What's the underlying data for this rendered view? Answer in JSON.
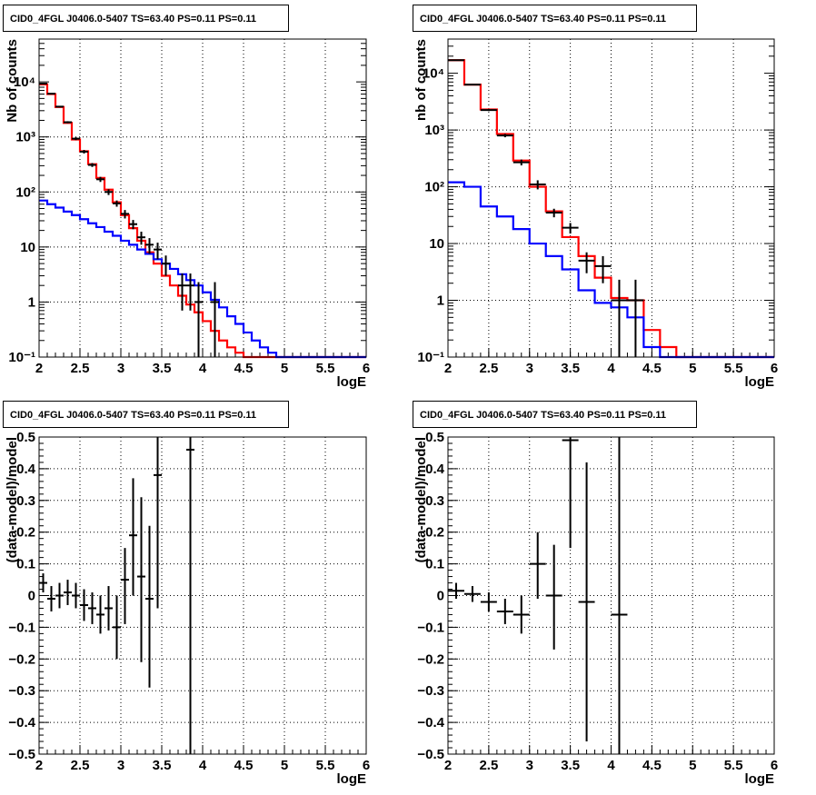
{
  "chart_data": [
    {
      "type": "line",
      "title": "CID0_4FGL J0406.0-5407 TS=63.40 PS=0.11 PS=0.11",
      "xlabel": "logE",
      "ylabel": "Nb of counts",
      "yscale": "log",
      "xlim": [
        2,
        6
      ],
      "ylim": [
        0.1,
        60000
      ],
      "x_ticks": [
        "2",
        "2.5",
        "3",
        "3.5",
        "4",
        "4.5",
        "5",
        "5.5",
        "6"
      ],
      "y_ticks": [
        {
          "value": 0.1,
          "label": "10⁻¹"
        },
        {
          "value": 1,
          "label": "1"
        },
        {
          "value": 10,
          "label": "10"
        },
        {
          "value": 100,
          "label": "10²"
        },
        {
          "value": 1000,
          "label": "10³"
        },
        {
          "value": 10000,
          "label": "10⁴"
        }
      ],
      "grid": true,
      "bin_edges": [
        2.0,
        2.1,
        2.2,
        2.3,
        2.4,
        2.5,
        2.6,
        2.7,
        2.8,
        2.9,
        3.0,
        3.1,
        3.2,
        3.3,
        3.4,
        3.5,
        3.6,
        3.7,
        3.8,
        3.9,
        4.0,
        4.1,
        4.2,
        4.3,
        4.4,
        4.5,
        4.6,
        4.7,
        4.8,
        4.9,
        5.0,
        5.1,
        5.2,
        5.3,
        5.4,
        5.5,
        5.6,
        5.7,
        5.8,
        5.9,
        6.0
      ],
      "series": [
        {
          "color": "#ff0000",
          "style": "histogram",
          "values": [
            9000,
            6000,
            3500,
            1800,
            900,
            550,
            320,
            180,
            110,
            65,
            38,
            22,
            13,
            8,
            5,
            3,
            2,
            1.3,
            0.9,
            0.65,
            0.45,
            0.3,
            0.2,
            0.15,
            0.12,
            0.1,
            0.1,
            0.1,
            0.1,
            0.1,
            0.1,
            0.1,
            0.1,
            0.1,
            0.1,
            0.1,
            0.1,
            0.1,
            0.1,
            0.1
          ]
        },
        {
          "color": "#0000ff",
          "style": "histogram",
          "values": [
            70,
            60,
            52,
            44,
            38,
            32,
            27,
            23,
            19,
            16,
            13,
            11,
            9,
            7.5,
            6,
            5,
            4,
            3.2,
            2.5,
            2,
            1.5,
            1.1,
            0.8,
            0.55,
            0.4,
            0.28,
            0.2,
            0.15,
            0.12,
            0.1,
            0.1,
            0.1,
            0.1,
            0.1,
            0.1,
            0.1,
            0.1,
            0.1,
            0.1,
            0.1
          ]
        },
        {
          "color": "#000000",
          "style": "points",
          "points": [
            {
              "x": 2.05,
              "y": 9300,
              "lo": 9100,
              "hi": 9500
            },
            {
              "x": 2.15,
              "y": 6100,
              "lo": 5950,
              "hi": 6250
            },
            {
              "x": 2.25,
              "y": 3550,
              "lo": 3440,
              "hi": 3660
            },
            {
              "x": 2.35,
              "y": 1850,
              "lo": 1770,
              "hi": 1930
            },
            {
              "x": 2.45,
              "y": 930,
              "lo": 875,
              "hi": 985
            },
            {
              "x": 2.55,
              "y": 540,
              "lo": 500,
              "hi": 580
            },
            {
              "x": 2.65,
              "y": 310,
              "lo": 285,
              "hi": 335
            },
            {
              "x": 2.75,
              "y": 170,
              "lo": 152,
              "hi": 188
            },
            {
              "x": 2.85,
              "y": 100,
              "lo": 88,
              "hi": 112
            },
            {
              "x": 2.95,
              "y": 62,
              "lo": 54,
              "hi": 70
            },
            {
              "x": 3.05,
              "y": 40,
              "lo": 33,
              "hi": 47
            },
            {
              "x": 3.15,
              "y": 26,
              "lo": 21,
              "hi": 31
            },
            {
              "x": 3.25,
              "y": 15,
              "lo": 11,
              "hi": 19
            },
            {
              "x": 3.35,
              "y": 11,
              "lo": 7.5,
              "hi": 14.5
            },
            {
              "x": 3.45,
              "y": 9,
              "lo": 6,
              "hi": 12
            },
            {
              "x": 3.55,
              "y": 5,
              "lo": 3,
              "hi": 7
            },
            {
              "x": 3.75,
              "y": 2,
              "lo": 0.7,
              "hi": 3.3
            },
            {
              "x": 3.85,
              "y": 2,
              "lo": 0.7,
              "hi": 3.3
            },
            {
              "x": 3.95,
              "y": 1,
              "lo": 0.1,
              "hi": 2.3
            },
            {
              "x": 4.15,
              "y": 1,
              "lo": 0.1,
              "hi": 2.3
            }
          ]
        }
      ]
    },
    {
      "type": "line",
      "title": "CID0_4FGL J0406.0-5407 TS=63.40 PS=0.11 PS=0.11",
      "xlabel": "logE",
      "ylabel": "nb of counts",
      "yscale": "log",
      "xlim": [
        2,
        6
      ],
      "ylim": [
        0.1,
        40000
      ],
      "x_ticks": [
        "2",
        "2.5",
        "3",
        "3.5",
        "4",
        "4.5",
        "5",
        "5.5",
        "6"
      ],
      "y_ticks": [
        {
          "value": 0.1,
          "label": "10⁻¹"
        },
        {
          "value": 1,
          "label": "1"
        },
        {
          "value": 10,
          "label": "10"
        },
        {
          "value": 100,
          "label": "10²"
        },
        {
          "value": 1000,
          "label": "10³"
        },
        {
          "value": 10000,
          "label": "10⁴"
        }
      ],
      "grid": true,
      "bin_edges": [
        2.0,
        2.2,
        2.4,
        2.6,
        2.8,
        3.0,
        3.2,
        3.4,
        3.6,
        3.8,
        4.0,
        4.2,
        4.4,
        4.6,
        4.8,
        5.0,
        5.2,
        5.4,
        5.6,
        5.8,
        6.0
      ],
      "series": [
        {
          "color": "#ff0000",
          "style": "histogram",
          "values": [
            17000,
            6300,
            2300,
            850,
            290,
            100,
            37,
            13,
            6,
            2.5,
            1.1,
            1.0,
            0.3,
            0.15,
            0.1,
            0.1,
            0.1,
            0.1,
            0.1,
            0.1
          ]
        },
        {
          "color": "#0000ff",
          "style": "histogram",
          "values": [
            120,
            100,
            45,
            30,
            18,
            10,
            6,
            3.5,
            1.5,
            0.9,
            0.75,
            0.5,
            0.15,
            0.1,
            0.1,
            0.1,
            0.1,
            0.1,
            0.1,
            0.1
          ]
        },
        {
          "color": "#000000",
          "style": "points",
          "points": [
            {
              "x": 2.1,
              "y": 17000,
              "lo": 16700,
              "hi": 17300
            },
            {
              "x": 2.3,
              "y": 6300,
              "lo": 6150,
              "hi": 6450
            },
            {
              "x": 2.5,
              "y": 2250,
              "lo": 2160,
              "hi": 2340
            },
            {
              "x": 2.7,
              "y": 800,
              "lo": 745,
              "hi": 855
            },
            {
              "x": 2.9,
              "y": 270,
              "lo": 238,
              "hi": 302
            },
            {
              "x": 3.1,
              "y": 110,
              "lo": 90,
              "hi": 130
            },
            {
              "x": 3.3,
              "y": 35,
              "lo": 29,
              "hi": 41
            },
            {
              "x": 3.5,
              "y": 19,
              "lo": 15,
              "hi": 23
            },
            {
              "x": 3.7,
              "y": 5,
              "lo": 3,
              "hi": 7
            },
            {
              "x": 3.9,
              "y": 4,
              "lo": 2,
              "hi": 6
            },
            {
              "x": 4.1,
              "y": 1,
              "lo": 0.1,
              "hi": 2.3
            },
            {
              "x": 4.3,
              "y": 1,
              "lo": 0.1,
              "hi": 2.3
            }
          ]
        }
      ]
    },
    {
      "type": "scatter",
      "title": "CID0_4FGL J0406.0-5407 TS=63.40 PS=0.11 PS=0.11",
      "xlabel": "logE",
      "ylabel": "(data-model)/model",
      "xlim": [
        2,
        6
      ],
      "ylim": [
        -0.5,
        0.5
      ],
      "x_ticks": [
        "2",
        "2.5",
        "3",
        "3.5",
        "4",
        "4.5",
        "5",
        "5.5",
        "6"
      ],
      "y_ticks": [
        "−0.5",
        "−0.4",
        "−0.3",
        "−0.2",
        "−0.1",
        "0",
        "0.1",
        "0.2",
        "0.3",
        "0.4",
        "0.5"
      ],
      "grid": true,
      "series": [
        {
          "color": "#000000",
          "half_width": 0.05,
          "points": [
            {
              "x": 2.05,
              "y": 0.04,
              "lo": 0.01,
              "hi": 0.07
            },
            {
              "x": 2.15,
              "y": -0.01,
              "lo": -0.05,
              "hi": 0.03
            },
            {
              "x": 2.25,
              "y": 0.0,
              "lo": -0.04,
              "hi": 0.04
            },
            {
              "x": 2.35,
              "y": 0.01,
              "lo": -0.03,
              "hi": 0.05
            },
            {
              "x": 2.45,
              "y": 0.0,
              "lo": -0.04,
              "hi": 0.04
            },
            {
              "x": 2.55,
              "y": -0.03,
              "lo": -0.08,
              "hi": 0.02
            },
            {
              "x": 2.65,
              "y": -0.04,
              "lo": -0.09,
              "hi": 0.01
            },
            {
              "x": 2.75,
              "y": -0.06,
              "lo": -0.12,
              "hi": 0.0
            },
            {
              "x": 2.85,
              "y": -0.04,
              "lo": -0.11,
              "hi": 0.03
            },
            {
              "x": 2.95,
              "y": -0.1,
              "lo": -0.2,
              "hi": 0.0
            },
            {
              "x": 3.05,
              "y": 0.05,
              "lo": -0.09,
              "hi": 0.15
            },
            {
              "x": 3.15,
              "y": 0.19,
              "lo": 0.0,
              "hi": 0.37
            },
            {
              "x": 3.25,
              "y": 0.06,
              "lo": -0.21,
              "hi": 0.31
            },
            {
              "x": 3.35,
              "y": -0.01,
              "lo": -0.29,
              "hi": 0.22
            },
            {
              "x": 3.45,
              "y": 0.38,
              "lo": -0.04,
              "hi": 0.8
            },
            {
              "x": 3.85,
              "y": 0.46,
              "lo": -0.5,
              "hi": 0.8
            }
          ]
        }
      ]
    },
    {
      "type": "scatter",
      "title": "CID0_4FGL J0406.0-5407 TS=63.40 PS=0.11 PS=0.11",
      "xlabel": "logE",
      "ylabel": "(data-model)/model",
      "xlim": [
        2,
        6
      ],
      "ylim": [
        -0.5,
        0.5
      ],
      "x_ticks": [
        "2",
        "2.5",
        "3",
        "3.5",
        "4",
        "4.5",
        "5",
        "5.5",
        "6"
      ],
      "y_ticks": [
        "−0.5",
        "−0.4",
        "−0.3",
        "−0.2",
        "−0.1",
        "0",
        "0.1",
        "0.2",
        "0.3",
        "0.4",
        "0.5"
      ],
      "grid": true,
      "series": [
        {
          "color": "#000000",
          "half_width": 0.1,
          "points": [
            {
              "x": 2.1,
              "y": 0.015,
              "lo": -0.01,
              "hi": 0.04
            },
            {
              "x": 2.3,
              "y": 0.005,
              "lo": -0.02,
              "hi": 0.03
            },
            {
              "x": 2.5,
              "y": -0.02,
              "lo": -0.05,
              "hi": 0.01
            },
            {
              "x": 2.7,
              "y": -0.05,
              "lo": -0.09,
              "hi": -0.01
            },
            {
              "x": 2.9,
              "y": -0.06,
              "lo": -0.12,
              "hi": 0.0
            },
            {
              "x": 3.1,
              "y": 0.1,
              "lo": -0.01,
              "hi": 0.2
            },
            {
              "x": 3.3,
              "y": 0.0,
              "lo": -0.17,
              "hi": 0.16
            },
            {
              "x": 3.5,
              "y": 0.49,
              "lo": 0.15,
              "hi": 0.8
            },
            {
              "x": 3.7,
              "y": -0.02,
              "lo": -0.46,
              "hi": 0.42
            },
            {
              "x": 4.1,
              "y": -0.06,
              "lo": -0.5,
              "hi": 0.8
            }
          ]
        }
      ]
    }
  ]
}
